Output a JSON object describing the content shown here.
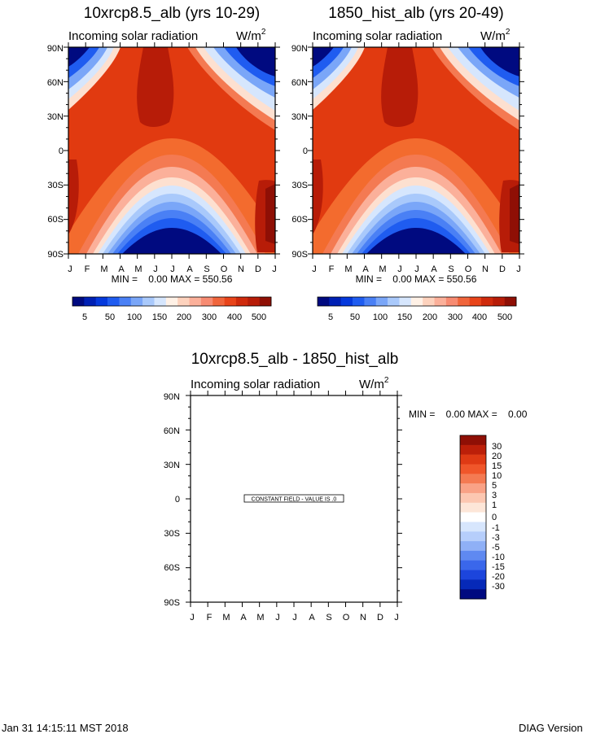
{
  "colors": {
    "panel_scale": [
      "#000a80",
      "#0020b4",
      "#0539dc",
      "#1f5cf0",
      "#4a80f5",
      "#7aa6f8",
      "#a9c9fb",
      "#d6e6fd",
      "#fff1e6",
      "#fdd2bd",
      "#fbb09a",
      "#f78b72",
      "#f0653c",
      "#e8441a",
      "#cf2a0c",
      "#b71c08",
      "#8f0f05"
    ],
    "diff_scale": [
      "#8f0f05",
      "#bc1f09",
      "#df3a14",
      "#f0562a",
      "#f47a52",
      "#f9a286",
      "#fcc7b1",
      "#fde6d8",
      "#ffffff",
      "#d7e6fd",
      "#b6cefb",
      "#8fb0f6",
      "#5f89f1",
      "#3a67eb",
      "#1c45dc",
      "#0629b8",
      "#000a80"
    ]
  },
  "chart_data": [
    {
      "type": "heatmap",
      "title": "10xrcp8.5_alb (yrs 10-29)",
      "subtitle": "Incoming solar radiation",
      "units": "W/m",
      "units_sup": "2",
      "x_ticks": [
        "J",
        "F",
        "M",
        "A",
        "M",
        "J",
        "J",
        "A",
        "S",
        "O",
        "N",
        "D",
        "J"
      ],
      "y_ticks": [
        "90N",
        "60N",
        "30N",
        "0",
        "30S",
        "60S",
        "90S"
      ],
      "ylim": [
        -90,
        90
      ],
      "stats": "MIN =    0.00 MAX = 550.56",
      "min": 0.0,
      "max": 550.56,
      "colorbar_labels": [
        "5",
        "50",
        "100",
        "150",
        "200",
        "300",
        "400",
        "500"
      ]
    },
    {
      "type": "heatmap",
      "title": "1850_hist_alb (yrs 20-49)",
      "subtitle": "Incoming solar radiation",
      "units": "W/m",
      "units_sup": "2",
      "x_ticks": [
        "J",
        "F",
        "M",
        "A",
        "M",
        "J",
        "J",
        "A",
        "S",
        "O",
        "N",
        "D",
        "J"
      ],
      "y_ticks": [
        "90N",
        "60N",
        "30N",
        "0",
        "30S",
        "60S",
        "90S"
      ],
      "ylim": [
        -90,
        90
      ],
      "stats": "MIN =    0.00 MAX = 550.56",
      "min": 0.0,
      "max": 550.56,
      "colorbar_labels": [
        "5",
        "50",
        "100",
        "150",
        "200",
        "300",
        "400",
        "500"
      ]
    },
    {
      "type": "heatmap",
      "title": "10xrcp8.5_alb - 1850_hist_alb",
      "subtitle": "Incoming solar radiation",
      "units": "W/m",
      "units_sup": "2",
      "x_ticks": [
        "J",
        "F",
        "M",
        "A",
        "M",
        "J",
        "J",
        "A",
        "S",
        "O",
        "N",
        "D",
        "J"
      ],
      "y_ticks": [
        "90N",
        "60N",
        "30N",
        "0",
        "30S",
        "60S",
        "90S"
      ],
      "ylim": [
        -90,
        90
      ],
      "stats": "MIN =    0.00 MAX =    0.00",
      "min": 0.0,
      "max": 0.0,
      "annotation": "CONSTANT FIELD - VALUE IS .0",
      "colorbar_labels": [
        "30",
        "20",
        "15",
        "10",
        "5",
        "3",
        "1",
        "0",
        "-1",
        "-3",
        "-5",
        "-10",
        "-15",
        "-20",
        "-30"
      ]
    }
  ],
  "footer": {
    "timestamp": "Jan 31 14:15:11 MST 2018",
    "version": "DIAG Version"
  }
}
